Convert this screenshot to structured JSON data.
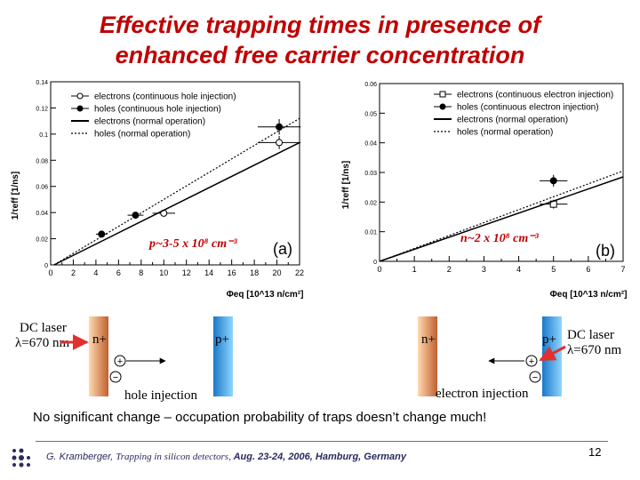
{
  "slide": {
    "title_line1": "Effective trapping times in presence of",
    "title_line2": "enhanced free carrier concentration",
    "conclusion": "No significant change – occupation probability of traps doesn’t change much!",
    "footer_author": "G. Kramberger, ",
    "footer_talk": "Trapping in silicon detectors, ",
    "footer_event": "Aug.  23-24, 2006, Hamburg, Germany",
    "page_number": "12"
  },
  "chart_data": [
    {
      "type": "scatter",
      "panel_label": "(a)",
      "ylabel": "1/τeff [1/ns]",
      "xlabel": "Φeq [10^13 n/cm²]",
      "xlim": [
        0,
        22
      ],
      "ylim": [
        0,
        0.14
      ],
      "xticks": [
        0,
        2,
        4,
        6,
        8,
        10,
        12,
        14,
        16,
        18,
        20,
        22
      ],
      "yticks": [
        0.02,
        0.04,
        0.06,
        0.08,
        0.1,
        0.12,
        0.14
      ],
      "legend_placement": "top-left",
      "annotation": "p~3-5 x 10⁸ cm⁻³",
      "series": [
        {
          "name": "electrons (continuous hole injection)",
          "marker": "open-circle",
          "points": [
            {
              "x": 10,
              "y": 0.0395,
              "xerr": 1,
              "yerr": 0.002
            },
            {
              "x": 20.2,
              "y": 0.0935,
              "xerr": 1.9,
              "yerr": 0.005
            }
          ]
        },
        {
          "name": "holes (continuous hole injection)",
          "marker": "filled-circle",
          "points": [
            {
              "x": 4.5,
              "y": 0.0235,
              "xerr": 0.5,
              "yerr": 0.0015
            },
            {
              "x": 7.5,
              "y": 0.038,
              "xerr": 0.7,
              "yerr": 0.002
            },
            {
              "x": 20.2,
              "y": 0.1055,
              "xerr": 1.9,
              "yerr": 0.006
            }
          ]
        },
        {
          "name": "electrons (normal operation)",
          "line": "solid",
          "fit": [
            [
              0.3,
              0
            ],
            [
              22,
              0.0935
            ]
          ]
        },
        {
          "name": "holes (normal operation)",
          "line": "dashed",
          "fit": [
            [
              0.3,
              0
            ],
            [
              22,
              0.112
            ]
          ]
        }
      ]
    },
    {
      "type": "scatter",
      "panel_label": "(b)",
      "ylabel": "1/τeff [1/ns]",
      "xlabel": "Φeq [10^13 n/cm²]",
      "xlim": [
        0,
        7
      ],
      "ylim": [
        0,
        0.06
      ],
      "xticks": [
        0,
        1,
        2,
        3,
        4,
        5,
        6,
        7
      ],
      "yticks": [
        0.01,
        0.02,
        0.03,
        0.04,
        0.05,
        0.06
      ],
      "legend_placement": "top-right",
      "annotation": "n~2 x 10⁸ cm⁻³",
      "series": [
        {
          "name": "electrons (continuous electron injection)",
          "marker": "open-square",
          "points": [
            {
              "x": 5,
              "y": 0.0193,
              "xerr": 0.4,
              "yerr": 0.0015
            }
          ]
        },
        {
          "name": "holes (continuous electron injection)",
          "marker": "filled-circle",
          "points": [
            {
              "x": 5,
              "y": 0.0272,
              "xerr": 0.4,
              "yerr": 0.002
            }
          ]
        },
        {
          "name": "electrons (normal operation)",
          "line": "solid",
          "fit": [
            [
              0,
              0
            ],
            [
              7,
              0.0285
            ]
          ]
        },
        {
          "name": "holes (normal operation)",
          "line": "dashed",
          "fit": [
            [
              0,
              0
            ],
            [
              7,
              0.0305
            ]
          ]
        }
      ]
    }
  ],
  "diagrams": {
    "left": {
      "laser_label_1": "DC laser",
      "laser_label_2": "λ=670 nm",
      "n_label": "n+",
      "p_label": "p+",
      "plus_sign": "+",
      "minus_sign": "−",
      "caption": "hole injection",
      "n_color": "#c06030",
      "p_color": "#2a8fd0"
    },
    "right": {
      "laser_label_1": "DC laser",
      "laser_label_2": "λ=670 nm",
      "n_label": "n+",
      "p_label": "p+",
      "plus_sign": "+",
      "minus_sign": "−",
      "caption": "electron injection",
      "arrow_color": "#e03030"
    }
  },
  "logo": {
    "icon": "dots-logo-icon"
  }
}
